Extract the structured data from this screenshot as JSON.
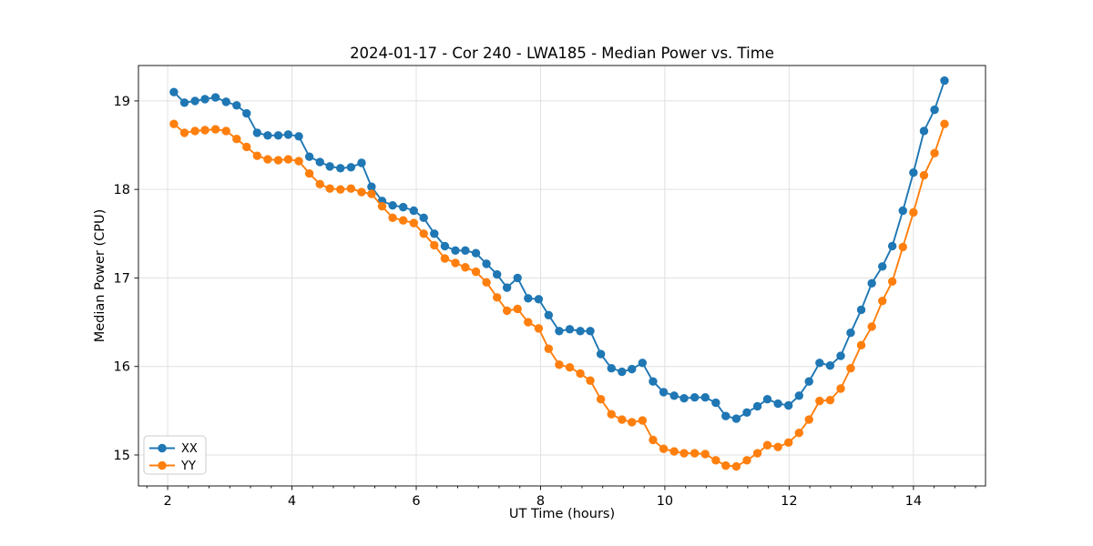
{
  "chart_data": {
    "type": "line",
    "title": "2024-01-17 - Cor 240 - LWA185 - Median Power vs. Time",
    "xlabel": "UT Time (hours)",
    "ylabel": "Median Power (CPU)",
    "xlim": [
      1.53,
      15.16
    ],
    "ylim": [
      14.65,
      19.4
    ],
    "xticks": [
      2,
      4,
      6,
      8,
      10,
      12,
      14
    ],
    "yticks": [
      15,
      16,
      17,
      18,
      19
    ],
    "x_minor_step": 0.33333,
    "grid": true,
    "grid_color": "#e0e0e0",
    "spine_color": "#1a1a1a",
    "legend_position": "lower left",
    "x": [
      2.1,
      2.27,
      2.44,
      2.6,
      2.77,
      2.94,
      3.11,
      3.27,
      3.44,
      3.61,
      3.78,
      3.94,
      4.11,
      4.28,
      4.45,
      4.61,
      4.78,
      4.95,
      5.12,
      5.28,
      5.45,
      5.62,
      5.79,
      5.96,
      6.12,
      6.29,
      6.46,
      6.63,
      6.79,
      6.96,
      7.13,
      7.3,
      7.46,
      7.63,
      7.8,
      7.97,
      8.13,
      8.3,
      8.47,
      8.64,
      8.8,
      8.97,
      9.14,
      9.31,
      9.47,
      9.64,
      9.81,
      9.98,
      10.15,
      10.31,
      10.48,
      10.65,
      10.82,
      10.98,
      11.15,
      11.32,
      11.49,
      11.65,
      11.82,
      11.99,
      12.16,
      12.32,
      12.49,
      12.66,
      12.83,
      12.99,
      13.16,
      13.33,
      13.5,
      13.66,
      13.83,
      14.0,
      14.17,
      14.34,
      14.5
    ],
    "series": [
      {
        "name": "XX",
        "color": "#1f77b4",
        "values": [
          19.1,
          18.98,
          19.0,
          19.02,
          19.04,
          18.99,
          18.95,
          18.86,
          18.64,
          18.61,
          18.61,
          18.62,
          18.6,
          18.37,
          18.31,
          18.26,
          18.24,
          18.25,
          18.3,
          18.03,
          17.87,
          17.82,
          17.8,
          17.76,
          17.68,
          17.5,
          17.36,
          17.31,
          17.31,
          17.28,
          17.16,
          17.04,
          16.89,
          17.0,
          16.77,
          16.76,
          16.58,
          16.4,
          16.42,
          16.4,
          16.4,
          16.14,
          15.98,
          15.94,
          15.97,
          16.04,
          15.83,
          15.71,
          15.67,
          15.64,
          15.65,
          15.65,
          15.59,
          15.44,
          15.41,
          15.48,
          15.55,
          15.63,
          15.58,
          15.56,
          15.67,
          15.83,
          16.04,
          16.01,
          16.12,
          16.38,
          16.64,
          16.94,
          17.13,
          17.36,
          17.76,
          18.19,
          18.66,
          18.9,
          19.23
        ]
      },
      {
        "name": "YY",
        "color": "#ff7f0e",
        "values": [
          18.74,
          18.64,
          18.66,
          18.67,
          18.68,
          18.66,
          18.57,
          18.48,
          18.38,
          18.34,
          18.33,
          18.34,
          18.32,
          18.18,
          18.06,
          18.01,
          18.0,
          18.01,
          17.97,
          17.95,
          17.81,
          17.68,
          17.65,
          17.62,
          17.5,
          17.37,
          17.22,
          17.17,
          17.12,
          17.07,
          16.95,
          16.78,
          16.63,
          16.65,
          16.5,
          16.43,
          16.2,
          16.02,
          15.99,
          15.92,
          15.84,
          15.63,
          15.46,
          15.4,
          15.37,
          15.39,
          15.17,
          15.07,
          15.04,
          15.02,
          15.02,
          15.01,
          14.94,
          14.88,
          14.87,
          14.94,
          15.02,
          15.11,
          15.09,
          15.14,
          15.25,
          15.4,
          15.61,
          15.62,
          15.75,
          15.98,
          16.24,
          16.45,
          16.74,
          16.96,
          17.35,
          17.74,
          18.16,
          18.41,
          18.74
        ]
      }
    ]
  }
}
